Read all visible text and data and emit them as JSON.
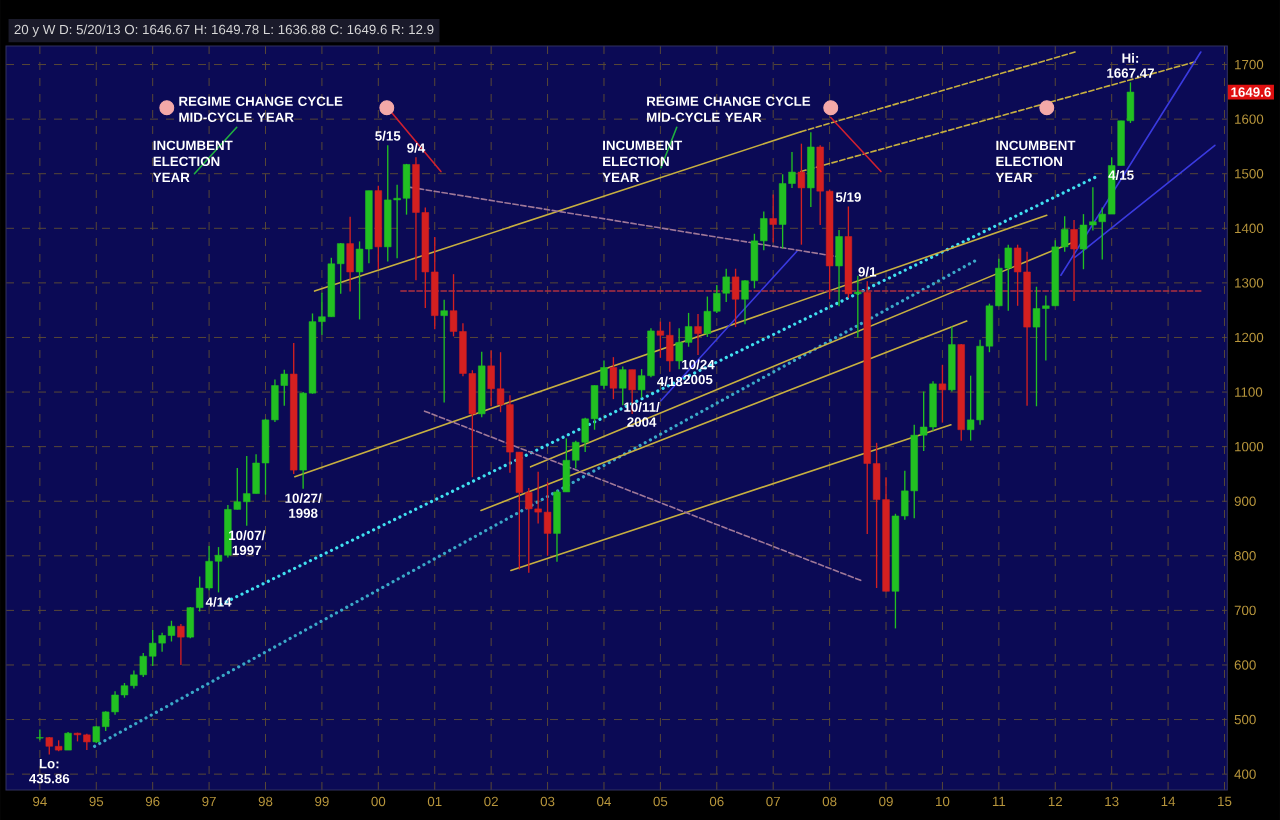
{
  "chart_data": {
    "type": "candlestick",
    "subtitle": "20 y W D: 5/20/13 O: 1646.67 H: 1649.78 L: 1636.88 C: 1649.6 R: 12.9",
    "x": [
      1994.0,
      1994.167,
      1994.333,
      1994.5,
      1994.667,
      1994.833,
      1995.0,
      1995.167,
      1995.333,
      1995.5,
      1995.667,
      1995.833,
      1996.0,
      1996.167,
      1996.333,
      1996.5,
      1996.667,
      1996.833,
      1997.0,
      1997.167,
      1997.333,
      1997.5,
      1997.667,
      1997.833,
      1998.0,
      1998.167,
      1998.333,
      1998.5,
      1998.667,
      1998.833,
      1999.0,
      1999.167,
      1999.333,
      1999.5,
      1999.667,
      1999.833,
      2000.0,
      2000.167,
      2000.333,
      2000.5,
      2000.667,
      2000.833,
      2001.0,
      2001.167,
      2001.333,
      2001.5,
      2001.667,
      2001.833,
      2002.0,
      2002.167,
      2002.333,
      2002.5,
      2002.667,
      2002.833,
      2003.0,
      2003.167,
      2003.333,
      2003.5,
      2003.667,
      2003.833,
      2004.0,
      2004.167,
      2004.333,
      2004.5,
      2004.667,
      2004.833,
      2005.0,
      2005.167,
      2005.333,
      2005.5,
      2005.667,
      2005.833,
      2006.0,
      2006.167,
      2006.333,
      2006.5,
      2006.667,
      2006.833,
      2007.0,
      2007.167,
      2007.333,
      2007.5,
      2007.667,
      2007.833,
      2008.0,
      2008.167,
      2008.333,
      2008.5,
      2008.667,
      2008.833,
      2009.0,
      2009.167,
      2009.333,
      2009.5,
      2009.667,
      2009.833,
      2010.0,
      2010.167,
      2010.333,
      2010.5,
      2010.667,
      2010.833,
      2011.0,
      2011.167,
      2011.333,
      2011.5,
      2011.667,
      2011.833,
      2012.0,
      2012.167,
      2012.333,
      2012.5,
      2012.667,
      2012.833,
      2013.0,
      2013.167,
      2013.333
    ],
    "ohlc": [
      [
        466,
        482,
        462,
        467
      ],
      [
        467,
        468,
        435.86,
        451
      ],
      [
        451,
        462,
        442,
        444
      ],
      [
        444,
        477,
        444,
        475
      ],
      [
        475,
        476,
        460,
        472
      ],
      [
        472,
        474,
        444,
        459
      ],
      [
        459,
        488,
        457,
        487
      ],
      [
        487,
        515,
        479,
        514
      ],
      [
        514,
        552,
        509,
        545
      ],
      [
        545,
        567,
        540,
        562
      ],
      [
        562,
        590,
        557,
        582
      ],
      [
        582,
        622,
        578,
        616
      ],
      [
        616,
        664,
        598,
        640
      ],
      [
        640,
        659,
        624,
        654
      ],
      [
        654,
        681,
        643,
        671
      ],
      [
        671,
        675,
        600,
        651
      ],
      [
        651,
        706,
        649,
        705
      ],
      [
        705,
        762,
        698,
        741
      ],
      [
        741,
        818,
        737,
        790
      ],
      [
        790,
        816,
        733,
        801
      ],
      [
        801,
        893,
        797,
        885
      ],
      [
        885,
        961,
        885,
        899
      ],
      [
        899,
        983,
        855,
        914
      ],
      [
        914,
        986,
        914,
        970
      ],
      [
        970,
        1051,
        912,
        1049
      ],
      [
        1049,
        1123,
        1045,
        1112
      ],
      [
        1112,
        1141,
        1075,
        1133
      ],
      [
        1133,
        1190,
        950,
        957
      ],
      [
        957,
        1100,
        923,
        1098
      ],
      [
        1098,
        1244,
        1097,
        1229
      ],
      [
        1229,
        1282,
        1205,
        1238
      ],
      [
        1238,
        1346,
        1238,
        1335
      ],
      [
        1335,
        1373,
        1280,
        1372
      ],
      [
        1372,
        1421,
        1284,
        1320
      ],
      [
        1320,
        1376,
        1233,
        1362
      ],
      [
        1362,
        1469,
        1336,
        1469
      ],
      [
        1469,
        1478,
        1325,
        1366
      ],
      [
        1366,
        1552,
        1339,
        1452
      ],
      [
        1452,
        1480,
        1345,
        1455
      ],
      [
        1455,
        1518,
        1425,
        1517
      ],
      [
        1517,
        1530,
        1305,
        1429
      ],
      [
        1429,
        1438,
        1254,
        1320
      ],
      [
        1320,
        1384,
        1215,
        1240
      ],
      [
        1240,
        1269,
        1081,
        1249
      ],
      [
        1249,
        1316,
        1202,
        1211
      ],
      [
        1211,
        1226,
        1129,
        1134
      ],
      [
        1134,
        1140,
        944,
        1060
      ],
      [
        1060,
        1174,
        1054,
        1148
      ],
      [
        1148,
        1176,
        1074,
        1106
      ],
      [
        1106,
        1173,
        1063,
        1077
      ],
      [
        1077,
        1094,
        952,
        990
      ],
      [
        990,
        990,
        775,
        916
      ],
      [
        916,
        924,
        769,
        886
      ],
      [
        886,
        954,
        859,
        880
      ],
      [
        880,
        935,
        800,
        841
      ],
      [
        841,
        920,
        789,
        917
      ],
      [
        917,
        1015,
        917,
        975
      ],
      [
        975,
        1011,
        960,
        1008
      ],
      [
        1008,
        1053,
        990,
        1051
      ],
      [
        1051,
        1112,
        1031,
        1112
      ],
      [
        1112,
        1158,
        1106,
        1145
      ],
      [
        1145,
        1164,
        1087,
        1107
      ],
      [
        1107,
        1147,
        1076,
        1141
      ],
      [
        1141,
        1141,
        1060,
        1104
      ],
      [
        1104,
        1142,
        1090,
        1130
      ],
      [
        1130,
        1217,
        1127,
        1212
      ],
      [
        1212,
        1229,
        1163,
        1204
      ],
      [
        1204,
        1229,
        1137,
        1157
      ],
      [
        1157,
        1217,
        1142,
        1191
      ],
      [
        1191,
        1245,
        1183,
        1220
      ],
      [
        1220,
        1243,
        1168,
        1207
      ],
      [
        1207,
        1275,
        1201,
        1248
      ],
      [
        1248,
        1296,
        1245,
        1281
      ],
      [
        1281,
        1326,
        1265,
        1311
      ],
      [
        1311,
        1326,
        1219,
        1270
      ],
      [
        1270,
        1305,
        1224,
        1304
      ],
      [
        1304,
        1390,
        1290,
        1377
      ],
      [
        1377,
        1431,
        1360,
        1418
      ],
      [
        1418,
        1462,
        1374,
        1407
      ],
      [
        1407,
        1499,
        1363,
        1482
      ],
      [
        1482,
        1540,
        1474,
        1503
      ],
      [
        1503,
        1555,
        1370,
        1474
      ],
      [
        1474,
        1576,
        1439,
        1549
      ],
      [
        1549,
        1552,
        1406,
        1468
      ],
      [
        1468,
        1471,
        1270,
        1331
      ],
      [
        1331,
        1397,
        1257,
        1385
      ],
      [
        1385,
        1440,
        1272,
        1280
      ],
      [
        1280,
        1313,
        1200,
        1283
      ],
      [
        1283,
        1303,
        840,
        969
      ],
      [
        969,
        1007,
        741,
        903
      ],
      [
        903,
        944,
        735,
        735
      ],
      [
        735,
        877,
        667,
        873
      ],
      [
        873,
        956,
        866,
        919
      ],
      [
        919,
        1040,
        869,
        1021
      ],
      [
        1021,
        1101,
        992,
        1036
      ],
      [
        1036,
        1120,
        1029,
        1115
      ],
      [
        1115,
        1150,
        1044,
        1104
      ],
      [
        1104,
        1220,
        1101,
        1187
      ],
      [
        1187,
        1188,
        1011,
        1031
      ],
      [
        1031,
        1130,
        1011,
        1049
      ],
      [
        1049,
        1196,
        1040,
        1184
      ],
      [
        1184,
        1262,
        1173,
        1258
      ],
      [
        1258,
        1344,
        1257,
        1327
      ],
      [
        1327,
        1370,
        1249,
        1364
      ],
      [
        1364,
        1370,
        1258,
        1320
      ],
      [
        1320,
        1357,
        1075,
        1219
      ],
      [
        1219,
        1293,
        1074,
        1253
      ],
      [
        1253,
        1277,
        1158,
        1258
      ],
      [
        1258,
        1378,
        1258,
        1366
      ],
      [
        1366,
        1422,
        1357,
        1398
      ],
      [
        1398,
        1415,
        1267,
        1362
      ],
      [
        1362,
        1426,
        1325,
        1406
      ],
      [
        1406,
        1475,
        1396,
        1412
      ],
      [
        1412,
        1438,
        1343,
        1426
      ],
      [
        1426,
        1530,
        1426,
        1515
      ],
      [
        1515,
        1597,
        1515,
        1597
      ],
      [
        1597,
        1667.47,
        1593,
        1649.6
      ]
    ],
    "series": [
      {
        "type": "line",
        "color": "#40e0f0",
        "line_style": "dotted",
        "x": [
          1997.21,
          2012.7
        ],
        "values": [
          711,
          1493
        ]
      },
      {
        "type": "line",
        "color": "#3aa8c8",
        "line_style": "dotted",
        "x": [
          1994.97,
          2010.57
        ],
        "values": [
          451,
          1340
        ]
      },
      {
        "type": "line",
        "color": "#c8b040",
        "line_style": "solid",
        "x": [
          1998.87,
          2007.49
        ],
        "values": [
          1285,
          1577
        ]
      },
      {
        "type": "line",
        "color": "#c8b040",
        "line_style": "dashed",
        "x": [
          2007.49,
          2012.35
        ],
        "values": [
          1577,
          1723
        ]
      },
      {
        "type": "line",
        "color": "#c8b040",
        "line_style": "solid",
        "x": [
          1998.52,
          2011.85
        ],
        "values": [
          945,
          1424
        ]
      },
      {
        "type": "line",
        "color": "#c8b040",
        "line_style": "solid",
        "x": [
          2002.35,
          2010.15
        ],
        "values": [
          773,
          1040
        ]
      },
      {
        "type": "line",
        "color": "#c8b040",
        "line_style": "solid",
        "x": [
          2002.7,
          2012.35
        ],
        "values": [
          963,
          1376
        ]
      },
      {
        "type": "line",
        "color": "#c8b040",
        "line_style": "solid",
        "x": [
          2001.82,
          2010.43
        ],
        "values": [
          883,
          1230
        ]
      },
      {
        "type": "line",
        "color": "#c8b040",
        "line_style": "dashed",
        "x": [
          2007.49,
          2014.48
        ],
        "values": [
          1504,
          1705
        ]
      },
      {
        "type": "line",
        "color": "#3a3ae0",
        "line_style": "solid",
        "x": [
          2012.1,
          2014.58
        ],
        "values": [
          1314,
          1723
        ]
      },
      {
        "type": "line",
        "color": "#3a3ae0",
        "line_style": "solid",
        "x": [
          2012.35,
          2014.83
        ],
        "values": [
          1347,
          1552
        ]
      },
      {
        "type": "line",
        "color": "#3a3ae0",
        "line_style": "solid",
        "x": [
          2005.01,
          2007.42
        ],
        "values": [
          1084,
          1358
        ]
      },
      {
        "type": "line",
        "color": "#a07898",
        "line_style": "dashed",
        "x": [
          2000.57,
          2008.2
        ],
        "values": [
          1475,
          1347
        ]
      },
      {
        "type": "line",
        "color": "#a07898",
        "line_style": "dashed",
        "x": [
          2000.82,
          2008.55
        ],
        "values": [
          1065,
          755
        ]
      },
      {
        "type": "line",
        "color": "#b03040",
        "line_style": "dashed",
        "x": [
          2000.4,
          2014.58
        ],
        "values": [
          1285,
          1285
        ]
      },
      {
        "type": "line",
        "color": "#20b040",
        "line_style": "solid",
        "x": [
          1996.74,
          1997.49
        ],
        "values": [
          1500,
          1585
        ]
      },
      {
        "type": "line",
        "color": "#20b040",
        "line_style": "solid",
        "x": [
          2005.01,
          2005.29
        ],
        "values": [
          1511,
          1585
        ]
      },
      {
        "type": "line",
        "color": "#d02030",
        "line_style": "solid",
        "x": [
          2000.22,
          2001.11
        ],
        "values": [
          1614,
          1504
        ]
      },
      {
        "type": "line",
        "color": "#d02030",
        "line_style": "solid",
        "x": [
          2008.02,
          2008.91
        ],
        "values": [
          1603,
          1504
        ]
      },
      {
        "type": "scatter",
        "color": "#f4a8a8",
        "marker": "circle",
        "x": [
          1996.25,
          2000.15,
          2008.02,
          2011.85
        ],
        "values": [
          1621,
          1621,
          1621,
          1621
        ]
      }
    ],
    "annotations": [
      "REGIME CHANGE CYCLE MID-CYCLE YEAR",
      "REGIME CHANGE CYCLE MID-CYCLE YEAR",
      "INCUMBENT ELECTION YEAR",
      "INCUMBENT ELECTION YEAR",
      "INCUMBENT ELECTION YEAR",
      {
        "text": "5/15",
        "x": 2000.167,
        "y": 1552
      },
      {
        "text": "9/4",
        "x": 2000.667,
        "y": 1530
      },
      {
        "text": "5/19",
        "x": 2008.333,
        "y": 1440
      },
      {
        "text": "9/1",
        "x": 2008.667,
        "y": 1303
      },
      {
        "text": "4/15",
        "x": 2013.167,
        "y": 1515
      },
      {
        "text": "4/18",
        "x": 2005.167,
        "y": 1137
      },
      {
        "text": "4/14",
        "x": 1997.167,
        "y": 733
      },
      {
        "text": "10/07/ 1997",
        "x": 1997.667,
        "y": 855
      },
      {
        "text": "10/27/ 1998",
        "x": 1998.667,
        "y": 923
      },
      {
        "text": "10/11/ 2004",
        "x": 2004.667,
        "y": 1090
      },
      {
        "text": "10/24 2005",
        "x": 2005.667,
        "y": 1168
      },
      {
        "text": "Hi: 1667.47",
        "x": 2013.333,
        "y": 1667.47
      },
      {
        "text": "Lo: 435.86",
        "x": 1994.167,
        "y": 435.86
      },
      {
        "text": "1649.6",
        "y": 1649.6
      }
    ],
    "xlim": [
      1993.4,
      2015.05
    ],
    "ylim": [
      371,
      1734
    ],
    "xticks": [
      {
        "value": 1994,
        "label": "94"
      },
      {
        "value": 1995,
        "label": "95"
      },
      {
        "value": 1996,
        "label": "96"
      },
      {
        "value": 1997,
        "label": "97"
      },
      {
        "value": 1998,
        "label": "98"
      },
      {
        "value": 1999,
        "label": "99"
      },
      {
        "value": 2000,
        "label": "00"
      },
      {
        "value": 2001,
        "label": "01"
      },
      {
        "value": 2002,
        "label": "02"
      },
      {
        "value": 2003,
        "label": "03"
      },
      {
        "value": 2004,
        "label": "04"
      },
      {
        "value": 2005,
        "label": "05"
      },
      {
        "value": 2006,
        "label": "06"
      },
      {
        "value": 2007,
        "label": "07"
      },
      {
        "value": 2008,
        "label": "08"
      },
      {
        "value": 2009,
        "label": "09"
      },
      {
        "value": 2010,
        "label": "10"
      },
      {
        "value": 2011,
        "label": "11"
      },
      {
        "value": 2012,
        "label": "12"
      },
      {
        "value": 2013,
        "label": "13"
      },
      {
        "value": 2014,
        "label": "14"
      },
      {
        "value": 2015,
        "label": "15"
      }
    ],
    "yticks": [
      400,
      500,
      600,
      700,
      800,
      900,
      1000,
      1100,
      1200,
      1300,
      1400,
      1500,
      1600,
      1700
    ],
    "grid": true
  }
}
